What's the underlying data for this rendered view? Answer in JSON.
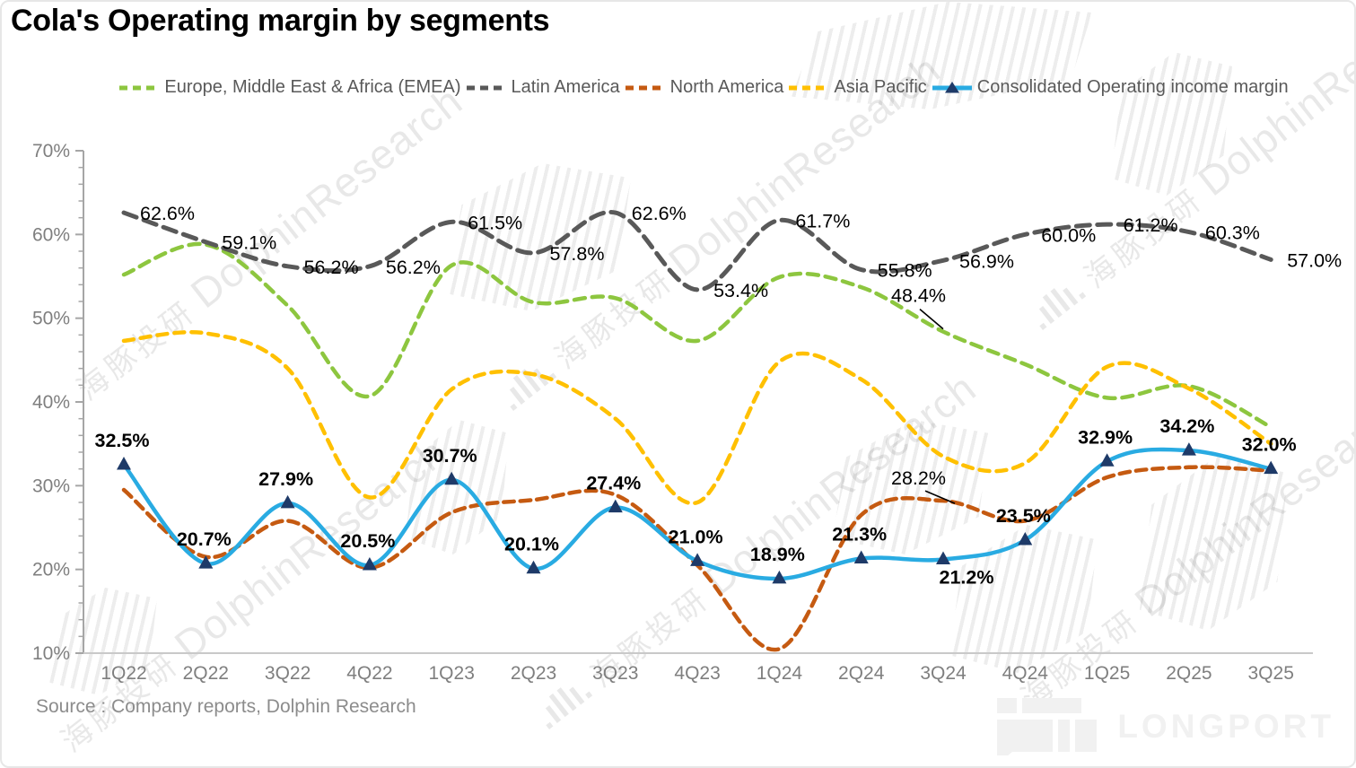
{
  "title": "Cola's Operating margin by segments",
  "source_note": "Source : Company reports, Dolphin Research",
  "watermark": {
    "bars_icon": ".ıllı.",
    "cn": "海豚投研",
    "en": "DolphinResearch"
  },
  "logo": {
    "text": "LONGPORT"
  },
  "chart_data": {
    "type": "line",
    "title": "Cola's Operating margin by segments",
    "categories": [
      "1Q22",
      "2Q22",
      "3Q22",
      "4Q22",
      "1Q23",
      "2Q23",
      "3Q23",
      "4Q23",
      "1Q24",
      "2Q24",
      "3Q24",
      "4Q24",
      "1Q25",
      "2Q25",
      "3Q25"
    ],
    "ylim": [
      10,
      70
    ],
    "y_tick_step": 10,
    "y_minor_step": 2,
    "y_tick_labels": [
      "10%",
      "20%",
      "30%",
      "40%",
      "50%",
      "60%",
      "70%"
    ],
    "grid": false,
    "legend_position": "top",
    "series": [
      {
        "name": "Europe, Middle East & Africa (EMEA)",
        "slug": "emea",
        "color": "#8DC63F",
        "style": "dashed",
        "values": [
          55.2,
          58.8,
          51.5,
          40.7,
          56.3,
          51.9,
          52.4,
          47.3,
          54.9,
          53.7,
          48.4,
          44.5,
          40.5,
          41.9,
          37.0
        ],
        "data_labels": false
      },
      {
        "name": "Latin America",
        "slug": "latin-america",
        "color": "#595959",
        "style": "dashed",
        "values": [
          62.6,
          59.1,
          56.2,
          56.2,
          61.5,
          57.8,
          62.6,
          53.4,
          61.7,
          55.8,
          56.9,
          60.0,
          61.2,
          60.3,
          57.0
        ],
        "data_labels": true,
        "label_placement": "right"
      },
      {
        "name": "North America",
        "slug": "north-america",
        "color": "#C55A11",
        "style": "dashed",
        "values": [
          29.5,
          21.5,
          25.8,
          20.2,
          26.8,
          28.3,
          28.9,
          20.5,
          10.5,
          26.5,
          28.2,
          25.8,
          31.0,
          32.2,
          31.8
        ],
        "data_labels": false
      },
      {
        "name": "Asia Pacific",
        "slug": "asia-pacific",
        "color": "#FFC000",
        "style": "dashed",
        "values": [
          47.3,
          48.2,
          44.0,
          28.6,
          41.5,
          43.3,
          38.0,
          28.0,
          44.8,
          42.7,
          33.5,
          32.7,
          44.2,
          41.6,
          35.0
        ],
        "data_labels": false
      },
      {
        "name": "Consolidated Operating income margin",
        "slug": "consolidated",
        "color": "#29ABE2",
        "style": "solid",
        "marker": "triangle",
        "marker_color": "#1E3A68",
        "values": [
          32.5,
          20.7,
          27.9,
          20.5,
          30.7,
          20.1,
          27.4,
          21.0,
          18.9,
          21.3,
          21.2,
          23.5,
          32.9,
          34.2,
          32.0
        ],
        "data_labels": true,
        "label_placement": "above",
        "label_below_indices": [
          10
        ]
      }
    ],
    "annotations": [
      {
        "text": "48.4%",
        "series_index": 0,
        "point_index": 10
      },
      {
        "text": "28.2%",
        "series_index": 2,
        "point_index": 10
      }
    ]
  }
}
